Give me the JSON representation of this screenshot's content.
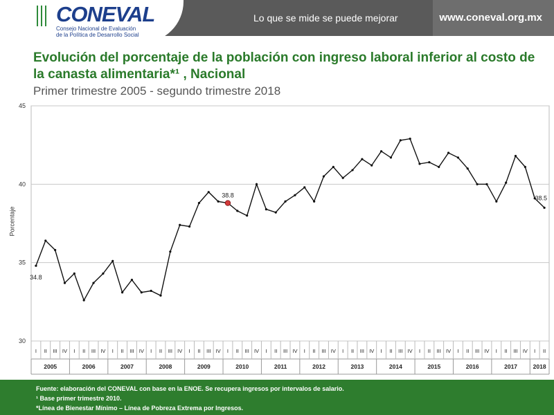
{
  "header": {
    "logo_text": "CONEVAL",
    "logo_sub_line1": "Consejo Nacional de Evaluación",
    "logo_sub_line2": "de la Política de Desarrollo Social",
    "slogan": "Lo que se mide se puede mejorar",
    "website": "www.coneval.org.mx"
  },
  "title": "Evolución del porcentaje de la población con ingreso laboral inferior al costo de la canasta alimentaria*¹ , Nacional",
  "subtitle": "Primer trimestre 2005 - segundo trimestre 2018",
  "chart_data": {
    "type": "line",
    "ylabel": "Porcentaje",
    "ylim": [
      30,
      45
    ],
    "yticks": [
      30,
      35,
      40,
      45
    ],
    "grid": true,
    "quarters": [
      "I",
      "II",
      "III",
      "IV"
    ],
    "years": [
      "2005",
      "2006",
      "2007",
      "2008",
      "2009",
      "2010",
      "2011",
      "2012",
      "2013",
      "2014",
      "2015",
      "2016",
      "2017",
      "2018"
    ],
    "values": [
      34.8,
      36.4,
      35.8,
      33.7,
      34.3,
      32.6,
      33.7,
      34.3,
      35.1,
      33.1,
      33.9,
      33.1,
      33.2,
      32.9,
      35.7,
      37.4,
      37.3,
      38.8,
      39.5,
      38.9,
      38.8,
      38.3,
      38.0,
      40.0,
      38.4,
      38.2,
      38.9,
      39.3,
      39.8,
      38.9,
      40.5,
      41.1,
      40.4,
      40.9,
      41.6,
      41.2,
      42.1,
      41.7,
      42.8,
      42.9,
      41.3,
      41.4,
      41.1,
      42.0,
      41.7,
      41.0,
      40.0,
      40.0,
      38.9,
      40.1,
      41.8,
      41.1,
      39.1,
      38.5
    ],
    "point_labels": [
      {
        "index": 0,
        "text": "34.8"
      },
      {
        "index": 20,
        "text": "38.8"
      },
      {
        "index": 53,
        "text": "38.5"
      }
    ],
    "highlight_index": 20,
    "highlight_color": "#d23a3a",
    "line_color": "#111111"
  },
  "footer": {
    "source": "Fuente: elaboración del CONEVAL con base en la ENOE. Se recupera ingresos por intervalos de salario.",
    "note1": "¹ Base primer trimestre 2010.",
    "note2": "*Línea de Bienestar Mínimo – Línea de Pobreza Extrema por Ingresos."
  },
  "colors": {
    "title": "#2a7a2a",
    "footer": "#2e7d2e",
    "header": "#5a5a5a"
  }
}
